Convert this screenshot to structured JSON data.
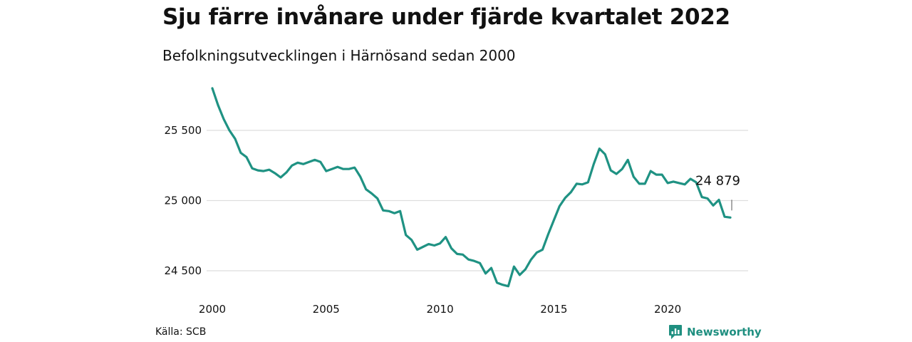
{
  "header": {
    "title": "Sju färre invånare under fjärde kvartalet 2022",
    "subtitle": "Befolkningsutvecklingen i Härnösand sedan 2000"
  },
  "footer": {
    "source": "Källa: SCB",
    "brand": "Newsworthy",
    "brand_icon": "bar-chart-logo-icon",
    "brand_color": "#1f8f80"
  },
  "chart_data": {
    "type": "line",
    "title": "Sju färre invånare under fjärde kvartalet 2022",
    "subtitle": "Befolkningsutvecklingen i Härnösand sedan 2000",
    "xlabel": "",
    "ylabel": "",
    "xlim": [
      2000,
      2023
    ],
    "ylim": [
      24400,
      25800
    ],
    "x_ticks": [
      2000,
      2005,
      2010,
      2015,
      2020
    ],
    "y_ticks": [
      24500,
      25000,
      25500
    ],
    "y_tick_labels": [
      "24 500",
      "25 000",
      "25 500"
    ],
    "grid": "horizontal",
    "line_color": "#1f9283",
    "end_label": "24 879",
    "series": [
      {
        "values": [
          {
            "x": 2000.0,
            "y": 25800
          },
          {
            "x": 2000.25,
            "y": 25680
          },
          {
            "x": 2000.5,
            "y": 25580
          },
          {
            "x": 2000.75,
            "y": 25500
          },
          {
            "x": 2001.0,
            "y": 25440
          },
          {
            "x": 2001.25,
            "y": 25340
          },
          {
            "x": 2001.5,
            "y": 25310
          },
          {
            "x": 2001.75,
            "y": 25230
          },
          {
            "x": 2002.0,
            "y": 25215
          },
          {
            "x": 2002.25,
            "y": 25210
          },
          {
            "x": 2002.5,
            "y": 25220
          },
          {
            "x": 2002.75,
            "y": 25195
          },
          {
            "x": 2003.0,
            "y": 25165
          },
          {
            "x": 2003.25,
            "y": 25200
          },
          {
            "x": 2003.5,
            "y": 25250
          },
          {
            "x": 2003.75,
            "y": 25270
          },
          {
            "x": 2004.0,
            "y": 25260
          },
          {
            "x": 2004.25,
            "y": 25275
          },
          {
            "x": 2004.5,
            "y": 25290
          },
          {
            "x": 2004.75,
            "y": 25275
          },
          {
            "x": 2005.0,
            "y": 25210
          },
          {
            "x": 2005.25,
            "y": 25225
          },
          {
            "x": 2005.5,
            "y": 25240
          },
          {
            "x": 2005.75,
            "y": 25225
          },
          {
            "x": 2006.0,
            "y": 25225
          },
          {
            "x": 2006.25,
            "y": 25235
          },
          {
            "x": 2006.5,
            "y": 25170
          },
          {
            "x": 2006.75,
            "y": 25080
          },
          {
            "x": 2007.0,
            "y": 25050
          },
          {
            "x": 2007.25,
            "y": 25015
          },
          {
            "x": 2007.5,
            "y": 24930
          },
          {
            "x": 2007.75,
            "y": 24925
          },
          {
            "x": 2008.0,
            "y": 24910
          },
          {
            "x": 2008.25,
            "y": 24925
          },
          {
            "x": 2008.5,
            "y": 24755
          },
          {
            "x": 2008.75,
            "y": 24720
          },
          {
            "x": 2009.0,
            "y": 24650
          },
          {
            "x": 2009.25,
            "y": 24670
          },
          {
            "x": 2009.5,
            "y": 24690
          },
          {
            "x": 2009.75,
            "y": 24680
          },
          {
            "x": 2010.0,
            "y": 24695
          },
          {
            "x": 2010.25,
            "y": 24740
          },
          {
            "x": 2010.5,
            "y": 24660
          },
          {
            "x": 2010.75,
            "y": 24620
          },
          {
            "x": 2011.0,
            "y": 24615
          },
          {
            "x": 2011.25,
            "y": 24580
          },
          {
            "x": 2011.5,
            "y": 24570
          },
          {
            "x": 2011.75,
            "y": 24555
          },
          {
            "x": 2012.0,
            "y": 24480
          },
          {
            "x": 2012.25,
            "y": 24520
          },
          {
            "x": 2012.5,
            "y": 24415
          },
          {
            "x": 2012.75,
            "y": 24400
          },
          {
            "x": 2013.0,
            "y": 24390
          },
          {
            "x": 2013.25,
            "y": 24530
          },
          {
            "x": 2013.5,
            "y": 24470
          },
          {
            "x": 2013.75,
            "y": 24510
          },
          {
            "x": 2014.0,
            "y": 24580
          },
          {
            "x": 2014.25,
            "y": 24630
          },
          {
            "x": 2014.5,
            "y": 24650
          },
          {
            "x": 2014.75,
            "y": 24760
          },
          {
            "x": 2015.0,
            "y": 24860
          },
          {
            "x": 2015.25,
            "y": 24960
          },
          {
            "x": 2015.5,
            "y": 25020
          },
          {
            "x": 2015.75,
            "y": 25060
          },
          {
            "x": 2016.0,
            "y": 25120
          },
          {
            "x": 2016.25,
            "y": 25115
          },
          {
            "x": 2016.5,
            "y": 25130
          },
          {
            "x": 2016.75,
            "y": 25260
          },
          {
            "x": 2017.0,
            "y": 25370
          },
          {
            "x": 2017.25,
            "y": 25330
          },
          {
            "x": 2017.5,
            "y": 25215
          },
          {
            "x": 2017.75,
            "y": 25190
          },
          {
            "x": 2018.0,
            "y": 25225
          },
          {
            "x": 2018.25,
            "y": 25290
          },
          {
            "x": 2018.5,
            "y": 25170
          },
          {
            "x": 2018.75,
            "y": 25120
          },
          {
            "x": 2019.0,
            "y": 25120
          },
          {
            "x": 2019.25,
            "y": 25210
          },
          {
            "x": 2019.5,
            "y": 25185
          },
          {
            "x": 2019.75,
            "y": 25185
          },
          {
            "x": 2020.0,
            "y": 25125
          },
          {
            "x": 2020.25,
            "y": 25135
          },
          {
            "x": 2020.5,
            "y": 25125
          },
          {
            "x": 2020.75,
            "y": 25115
          },
          {
            "x": 2021.0,
            "y": 25155
          },
          {
            "x": 2021.25,
            "y": 25130
          },
          {
            "x": 2021.5,
            "y": 25025
          },
          {
            "x": 2021.75,
            "y": 25015
          },
          {
            "x": 2022.0,
            "y": 24965
          },
          {
            "x": 2022.25,
            "y": 25005
          },
          {
            "x": 2022.5,
            "y": 24885
          },
          {
            "x": 2022.75,
            "y": 24879
          }
        ]
      }
    ]
  }
}
